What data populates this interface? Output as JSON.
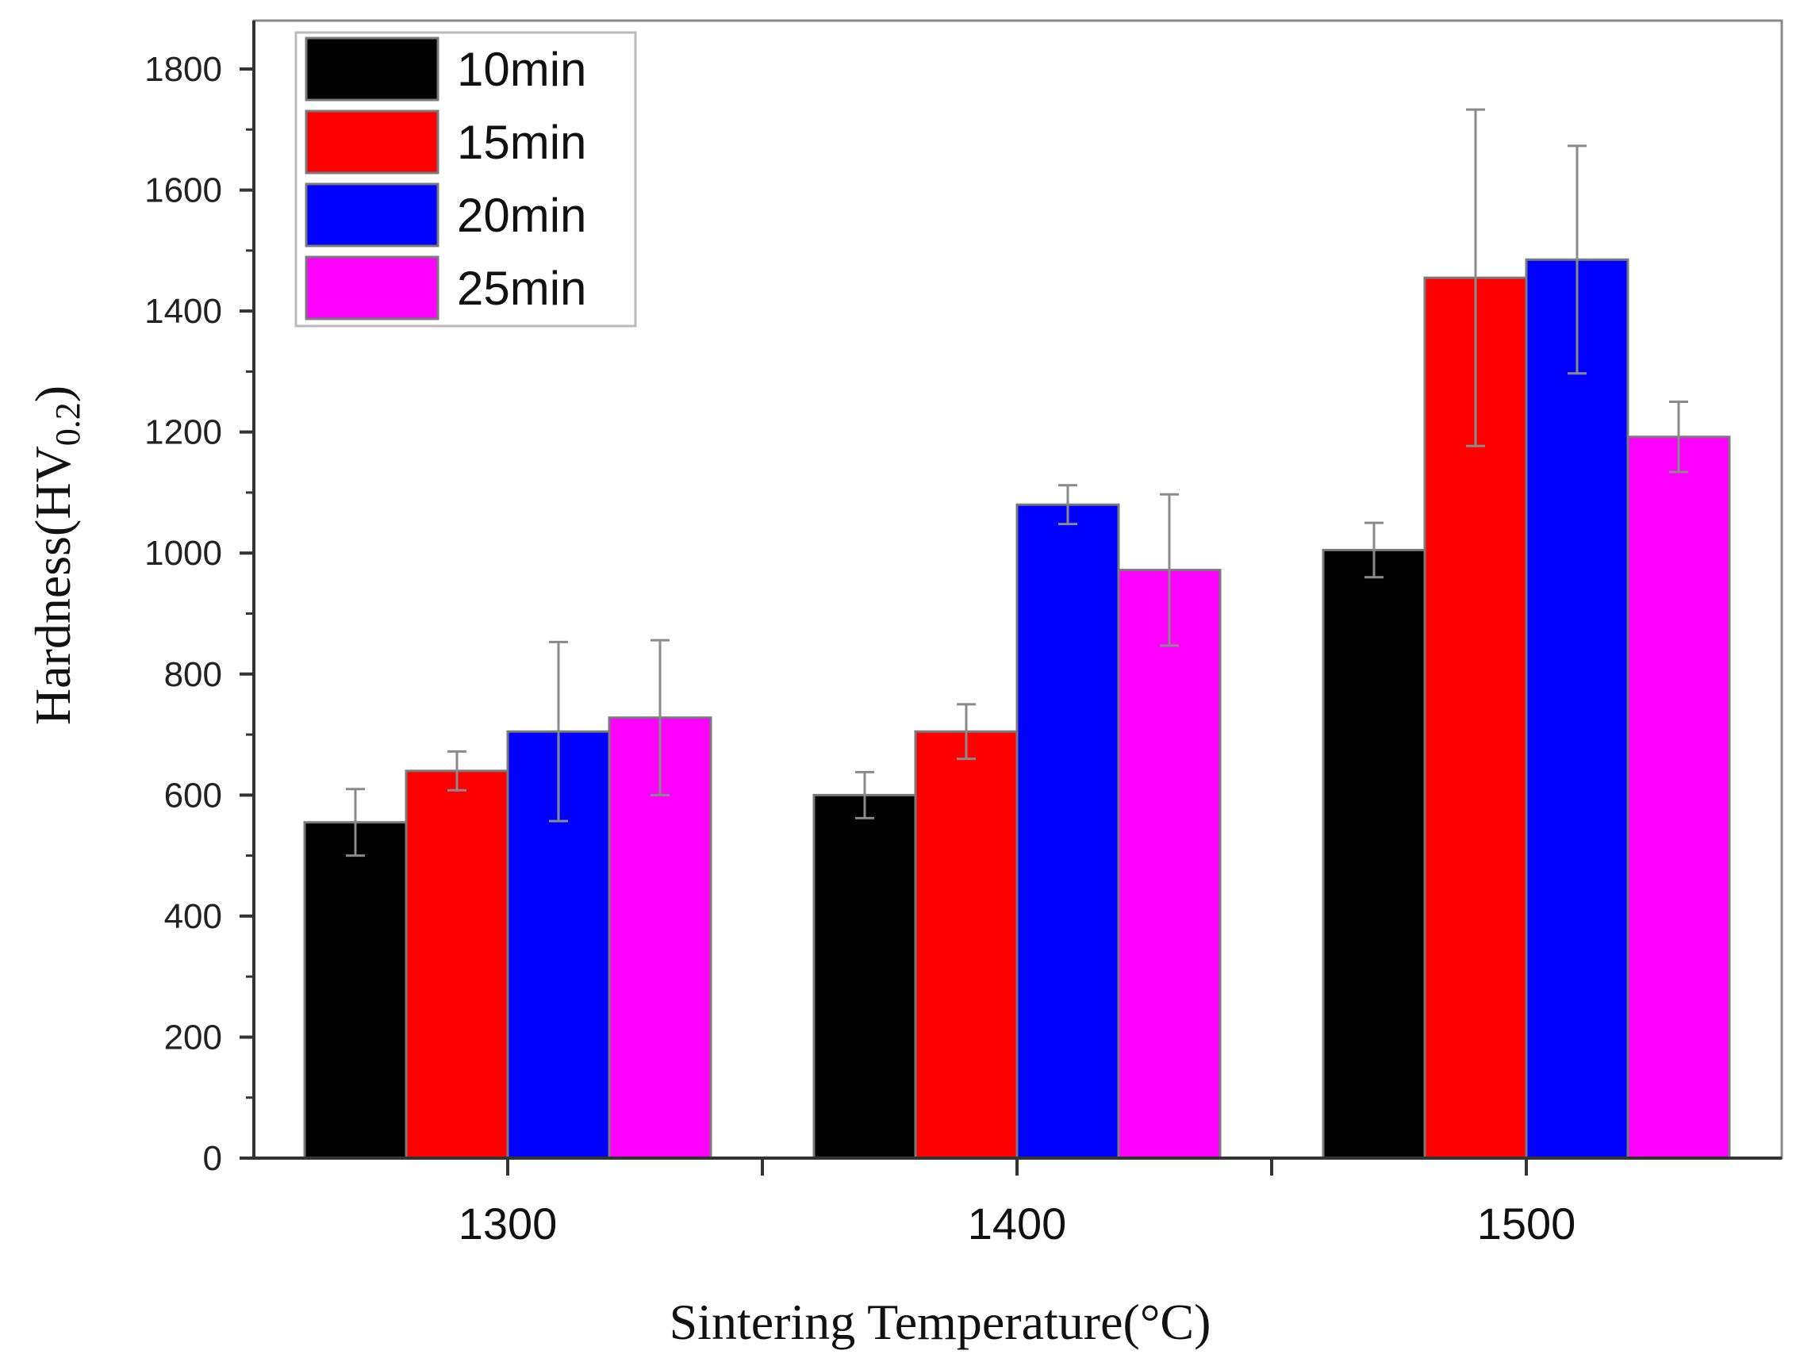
{
  "chart_data": {
    "type": "bar",
    "title": "",
    "xlabel": "Sintering Temperature(°C)",
    "ylabel": "Hardness(HV",
    "ylabel_subscript": "0.2",
    "ylabel_suffix": ")",
    "ylim": [
      0,
      1880
    ],
    "yticks": [
      0,
      200,
      400,
      600,
      800,
      1000,
      1200,
      1400,
      1600,
      1800
    ],
    "ytick_labels": [
      "0",
      "200",
      "400",
      "600",
      "800",
      "1000",
      "1200",
      "1400",
      "1600",
      "1800"
    ],
    "categories": [
      "1300",
      "1400",
      "1500"
    ],
    "legend_position": "top-left",
    "series": [
      {
        "name": "10min",
        "color": "#000000",
        "values": [
          555,
          600,
          1005
        ],
        "errors": [
          55,
          38,
          45
        ]
      },
      {
        "name": "15min",
        "color": "#ff0000",
        "values": [
          640,
          705,
          1455
        ],
        "errors": [
          32,
          45,
          278
        ]
      },
      {
        "name": "20min",
        "color": "#0000ff",
        "values": [
          705,
          1080,
          1485
        ],
        "errors": [
          148,
          32,
          188
        ]
      },
      {
        "name": "25min",
        "color": "#ff00ff",
        "values": [
          728,
          972,
          1192
        ],
        "errors": [
          128,
          125,
          58
        ]
      }
    ]
  }
}
